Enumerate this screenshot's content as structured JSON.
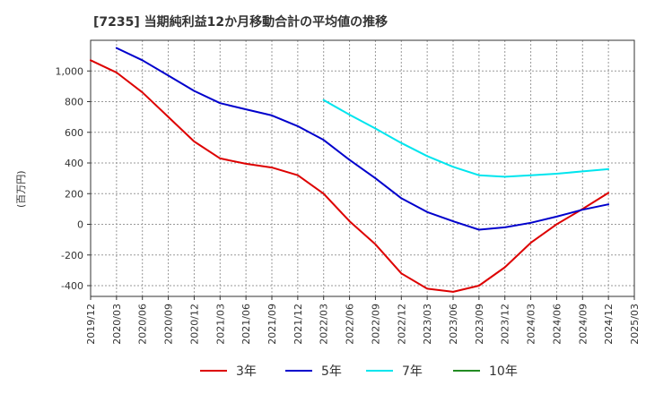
{
  "chart_data": {
    "type": "line",
    "title": "[7235]  当期純利益12か月移動合計の平均値の推移",
    "ylabel": "(百万円)",
    "xlabel": "",
    "ylim": [
      -470,
      1200
    ],
    "yticks": [
      -400,
      -200,
      0,
      200,
      400,
      600,
      800,
      1000
    ],
    "ytick_labels": [
      "-400",
      "-200",
      "0",
      "200",
      "400",
      "600",
      "800",
      "1,000"
    ],
    "x_tick_labels": [
      "2019/12",
      "2020/03",
      "2020/06",
      "2020/09",
      "2020/12",
      "2021/03",
      "2021/06",
      "2021/09",
      "2021/12",
      "2022/03",
      "2022/06",
      "2022/09",
      "2022/12",
      "2023/03",
      "2023/06",
      "2023/09",
      "2023/12",
      "2024/03",
      "2024/06",
      "2024/09",
      "2024/12",
      "2025/03"
    ],
    "grid": true,
    "legend_position": "bottom",
    "series": [
      {
        "name": "3年",
        "color": "#dd0000",
        "points": [
          [
            "2019/12",
            1070
          ],
          [
            "2020/03",
            990
          ],
          [
            "2020/06",
            860
          ],
          [
            "2020/09",
            700
          ],
          [
            "2020/12",
            540
          ],
          [
            "2021/03",
            430
          ],
          [
            "2021/06",
            395
          ],
          [
            "2021/09",
            370
          ],
          [
            "2021/12",
            320
          ],
          [
            "2022/03",
            200
          ],
          [
            "2022/06",
            20
          ],
          [
            "2022/09",
            -130
          ],
          [
            "2022/12",
            -320
          ],
          [
            "2023/03",
            -420
          ],
          [
            "2023/06",
            -440
          ],
          [
            "2023/09",
            -400
          ],
          [
            "2023/12",
            -280
          ],
          [
            "2024/03",
            -120
          ],
          [
            "2024/06",
            0
          ],
          [
            "2024/09",
            100
          ],
          [
            "2024/12",
            205
          ]
        ]
      },
      {
        "name": "5年",
        "color": "#0000cc",
        "points": [
          [
            "2020/03",
            1150
          ],
          [
            "2020/06",
            1070
          ],
          [
            "2020/09",
            970
          ],
          [
            "2020/12",
            870
          ],
          [
            "2021/03",
            790
          ],
          [
            "2021/06",
            750
          ],
          [
            "2021/09",
            710
          ],
          [
            "2021/12",
            640
          ],
          [
            "2022/03",
            550
          ],
          [
            "2022/06",
            420
          ],
          [
            "2022/09",
            300
          ],
          [
            "2022/12",
            170
          ],
          [
            "2023/03",
            80
          ],
          [
            "2023/06",
            20
          ],
          [
            "2023/09",
            -35
          ],
          [
            "2023/12",
            -20
          ],
          [
            "2024/03",
            10
          ],
          [
            "2024/06",
            50
          ],
          [
            "2024/09",
            95
          ],
          [
            "2024/12",
            130
          ]
        ]
      },
      {
        "name": "7年",
        "color": "#00e5ee",
        "points": [
          [
            "2022/03",
            810
          ],
          [
            "2022/06",
            715
          ],
          [
            "2022/09",
            625
          ],
          [
            "2022/12",
            530
          ],
          [
            "2023/03",
            445
          ],
          [
            "2023/06",
            375
          ],
          [
            "2023/09",
            320
          ],
          [
            "2023/12",
            310
          ],
          [
            "2024/03",
            320
          ],
          [
            "2024/06",
            330
          ],
          [
            "2024/09",
            345
          ],
          [
            "2024/12",
            360
          ]
        ]
      },
      {
        "name": "10年",
        "color": "#228b22",
        "points": []
      }
    ]
  }
}
